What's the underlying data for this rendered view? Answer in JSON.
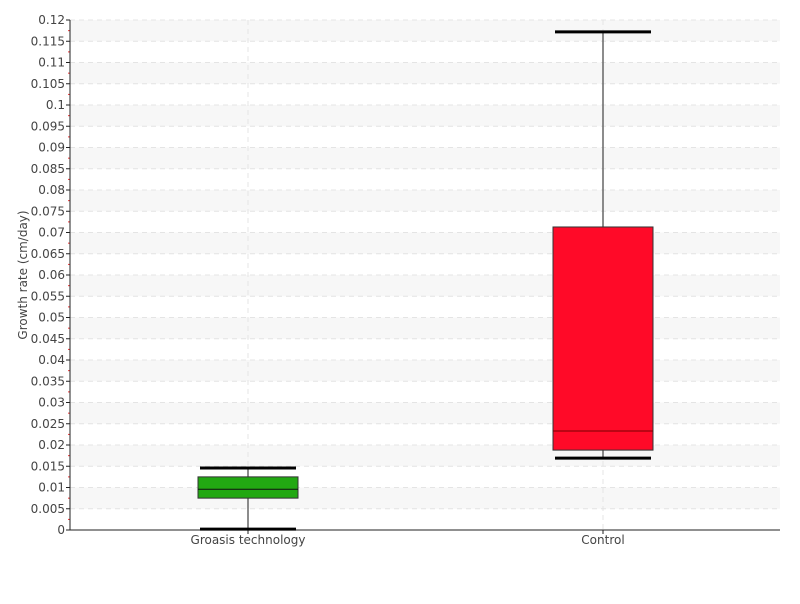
{
  "chart_data": {
    "type": "boxplot",
    "title": "",
    "xlabel": "",
    "ylabel": "Growth rate (cm/day)",
    "ylim": [
      0,
      0.12
    ],
    "ytick_step": 0.005,
    "grid": true,
    "categories": [
      "Groasis technology",
      "Control"
    ],
    "boxes": [
      {
        "category": "Groasis technology",
        "whisker_low": 0.0002,
        "q1": 0.0075,
        "median": 0.0096,
        "q3": 0.0125,
        "whisker_high": 0.0146,
        "color": "#22a812"
      },
      {
        "category": "Control",
        "whisker_low": 0.0169,
        "q1": 0.0188,
        "median": 0.0233,
        "q3": 0.0713,
        "whisker_high": 0.1172,
        "color": "#ff0a28"
      }
    ]
  }
}
